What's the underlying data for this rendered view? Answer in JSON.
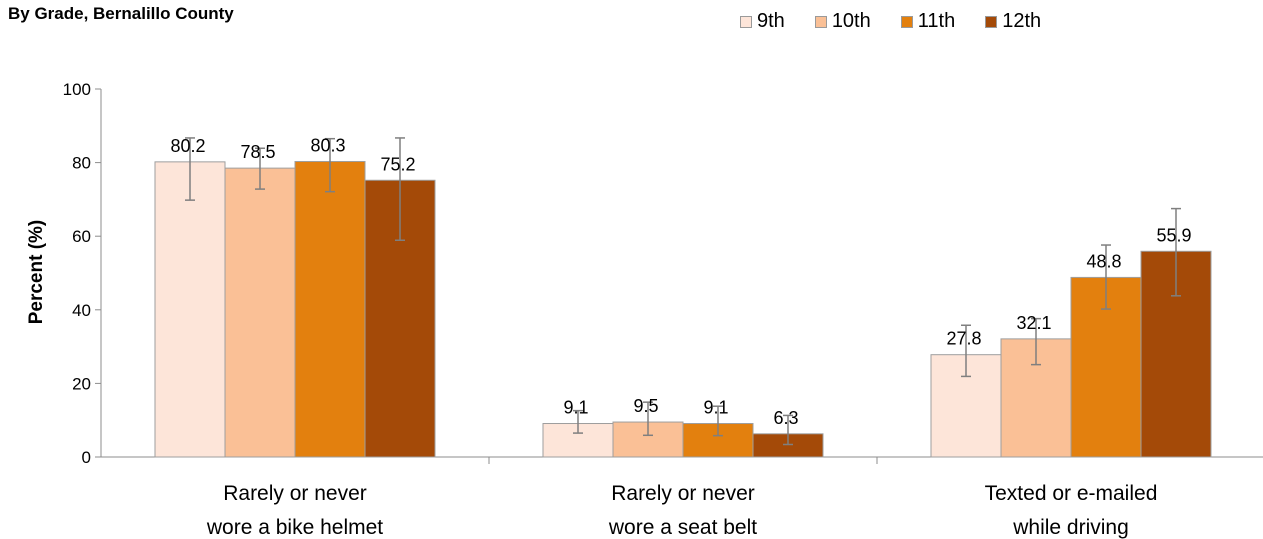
{
  "chart_data": {
    "type": "bar",
    "title": "By Grade, Bernalillo County",
    "ylabel": "Percent (%)",
    "xlabel": "",
    "ylim": [
      0,
      100
    ],
    "yticks": [
      0,
      20,
      40,
      60,
      80,
      100
    ],
    "categories": [
      [
        "Rarely or never",
        "wore a bike helmet"
      ],
      [
        "Rarely or never",
        "wore a seat belt"
      ],
      [
        "Texted or e-mailed",
        "while driving"
      ]
    ],
    "legend_position": "top-right",
    "grid": false,
    "series": [
      {
        "name": "9th",
        "color": "#FDE5D9",
        "values": [
          80.2,
          9.1,
          27.8
        ],
        "ci_low": [
          69.8,
          6.5,
          21.9
        ],
        "ci_high": [
          86.7,
          12.6,
          35.8
        ]
      },
      {
        "name": "10th",
        "color": "#FAC096",
        "values": [
          78.5,
          9.5,
          32.1
        ],
        "ci_low": [
          72.8,
          5.9,
          25.1
        ],
        "ci_high": [
          83.9,
          14.9,
          37.6
        ]
      },
      {
        "name": "11th",
        "color": "#E3800E",
        "values": [
          80.3,
          9.1,
          48.8
        ],
        "ci_low": [
          72.1,
          5.8,
          40.2
        ],
        "ci_high": [
          86.5,
          13.8,
          57.6
        ]
      },
      {
        "name": "12th",
        "color": "#A44A08",
        "values": [
          75.2,
          6.3,
          55.9
        ],
        "ci_low": [
          58.9,
          3.4,
          43.8
        ],
        "ci_high": [
          86.7,
          11.3,
          67.5
        ]
      }
    ]
  }
}
